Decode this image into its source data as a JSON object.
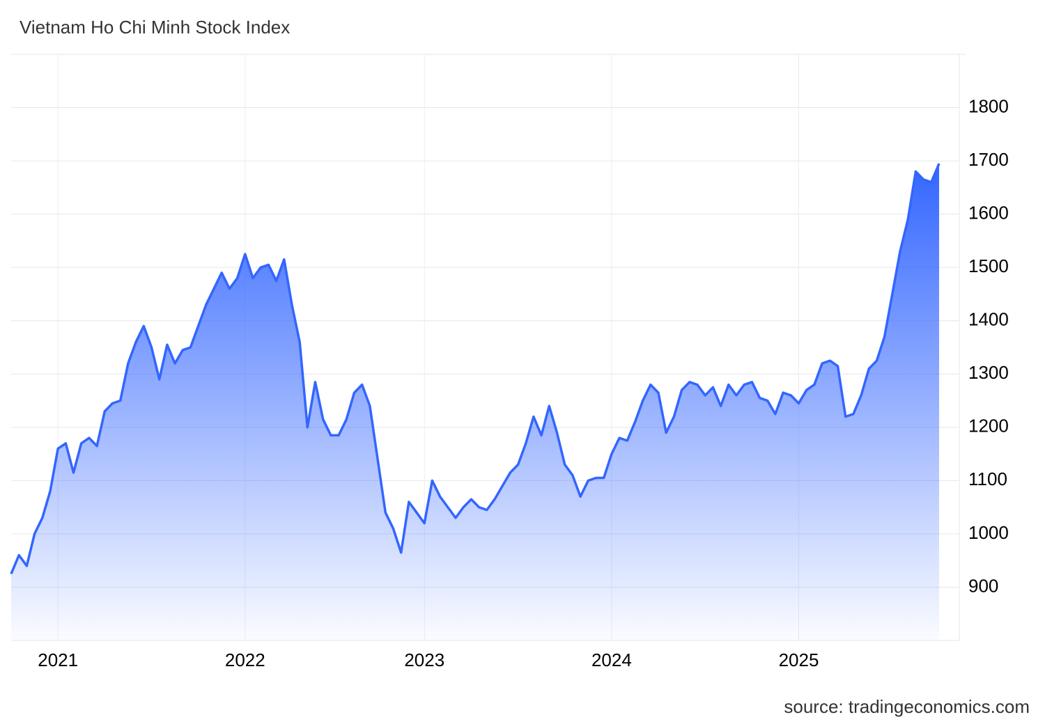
{
  "chart_data": {
    "type": "area",
    "title": "Vietnam Ho Chi Minh Stock Index",
    "source": "source: tradingeconomics.com",
    "color": "#3366ff",
    "grid": true,
    "ylim": [
      800,
      1900
    ],
    "yticks": [
      900,
      1000,
      1100,
      1200,
      1300,
      1400,
      1500,
      1600,
      1700,
      1800
    ],
    "categories": [
      null,
      null,
      null,
      null,
      null,
      null,
      "2021",
      null,
      null,
      null,
      null,
      null,
      null,
      null,
      null,
      null,
      null,
      null,
      null,
      null,
      null,
      null,
      null,
      null,
      null,
      null,
      null,
      null,
      null,
      null,
      "2022",
      null,
      null,
      null,
      null,
      null,
      null,
      null,
      null,
      null,
      null,
      null,
      null,
      null,
      null,
      null,
      null,
      null,
      null,
      null,
      null,
      null,
      null,
      "2023",
      null,
      null,
      null,
      null,
      null,
      null,
      null,
      null,
      null,
      null,
      null,
      null,
      null,
      null,
      null,
      null,
      null,
      null,
      null,
      null,
      null,
      null,
      null,
      "2024",
      null,
      null,
      null,
      null,
      null,
      null,
      null,
      null,
      null,
      null,
      null,
      null,
      null,
      null,
      null,
      null,
      null,
      null,
      null,
      null,
      null,
      null,
      null,
      "2025",
      null,
      null,
      null,
      null,
      null,
      null,
      null,
      null,
      null,
      null,
      null,
      null,
      null,
      null,
      null,
      null,
      null,
      null
    ],
    "values": [
      925,
      960,
      940,
      1000,
      1030,
      1080,
      1160,
      1170,
      1115,
      1170,
      1180,
      1165,
      1230,
      1245,
      1250,
      1320,
      1360,
      1390,
      1350,
      1290,
      1355,
      1320,
      1345,
      1350,
      1390,
      1430,
      1460,
      1490,
      1460,
      1480,
      1525,
      1480,
      1500,
      1505,
      1475,
      1515,
      1430,
      1360,
      1200,
      1285,
      1215,
      1185,
      1185,
      1215,
      1265,
      1280,
      1240,
      1140,
      1040,
      1010,
      965,
      1060,
      1040,
      1020,
      1100,
      1070,
      1050,
      1030,
      1050,
      1065,
      1050,
      1045,
      1065,
      1090,
      1115,
      1130,
      1170,
      1220,
      1185,
      1240,
      1190,
      1130,
      1110,
      1070,
      1100,
      1105,
      1105,
      1150,
      1180,
      1175,
      1210,
      1250,
      1280,
      1265,
      1190,
      1220,
      1270,
      1285,
      1280,
      1260,
      1275,
      1240,
      1280,
      1260,
      1280,
      1285,
      1255,
      1250,
      1225,
      1265,
      1260,
      1245,
      1270,
      1280,
      1320,
      1325,
      1315,
      1220,
      1225,
      1260,
      1310,
      1325,
      1370,
      1450,
      1530,
      1590,
      1680,
      1665,
      1660,
      1695
    ]
  }
}
